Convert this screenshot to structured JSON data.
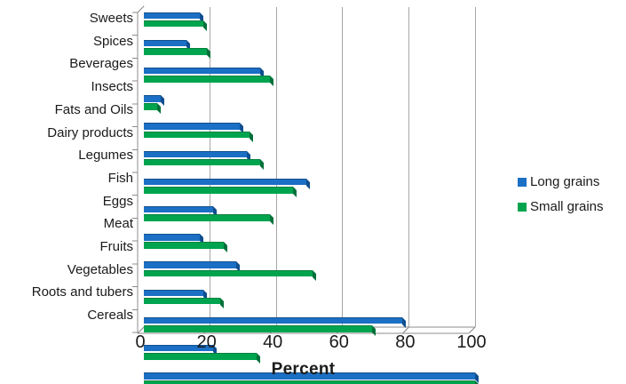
{
  "chart_data": {
    "type": "bar",
    "orientation": "horizontal",
    "title": "",
    "xlabel": "Percent",
    "ylabel": "",
    "xlim": [
      0,
      100
    ],
    "xticks": [
      0,
      20,
      40,
      60,
      80,
      100
    ],
    "grid": true,
    "legend_position": "right",
    "categories": [
      "Sweets",
      "Spices",
      "Beverages",
      "Insects",
      "Fats and Oils",
      "Dairy products",
      "Legumes",
      "Fish",
      "Eggs",
      "Meat",
      "Fruits",
      "Vegetables",
      "Roots and tubers",
      "Cereals"
    ],
    "series": [
      {
        "name": "Long grains",
        "color": "#1b6fc4",
        "color_dark": "#0f4e8f",
        "values": [
          17,
          13,
          35,
          5,
          29,
          31,
          49,
          21,
          17,
          28,
          18,
          78,
          21,
          100
        ]
      },
      {
        "name": "Small grains",
        "color": "#00a44f",
        "color_dark": "#00713a",
        "values": [
          18,
          19,
          38,
          4,
          32,
          35,
          45,
          38,
          24,
          51,
          23,
          69,
          34,
          100
        ]
      }
    ]
  },
  "colors": {
    "background": "#ffffff",
    "gridline": "#a6a6a6",
    "axis": "#8c8c8c",
    "text": "#1a1a1a"
  }
}
